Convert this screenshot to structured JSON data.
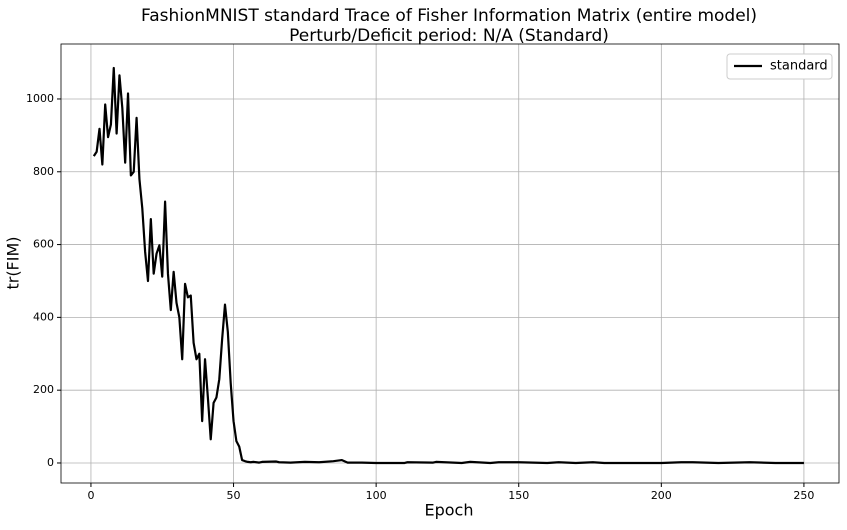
{
  "chart_data": {
    "type": "line",
    "title": "FashionMNIST standard Trace of Fisher Information Matrix (entire model)",
    "subtitle": "Perturb/Deficit period: N/A (Standard)",
    "x_label": "Epoch",
    "y_label": "tr(FIM)",
    "x": [
      1,
      2,
      3,
      4,
      5,
      6,
      7,
      8,
      9,
      10,
      11,
      12,
      13,
      14,
      15,
      16,
      17,
      18,
      19,
      20,
      21,
      22,
      23,
      24,
      25,
      26,
      27,
      28,
      29,
      30,
      31,
      32,
      33,
      34,
      35,
      36,
      37,
      38,
      39,
      40,
      41,
      42,
      43,
      44,
      45,
      46,
      47,
      48,
      49,
      50,
      51,
      52,
      53,
      54,
      55,
      56,
      57,
      58,
      59,
      60,
      65,
      66,
      70,
      75,
      80,
      85,
      88,
      90,
      95,
      100,
      110,
      111,
      120,
      121,
      130,
      133,
      140,
      143,
      150,
      160,
      164,
      170,
      176,
      180,
      190,
      200,
      207,
      211,
      220,
      231,
      240,
      250
    ],
    "series": [
      {
        "name": "standard",
        "color": "#000000",
        "values": [
          843,
          855,
          918,
          820,
          985,
          895,
          930,
          1085,
          905,
          1065,
          975,
          825,
          1015,
          790,
          800,
          948,
          780,
          700,
          580,
          500,
          670,
          520,
          575,
          598,
          512,
          718,
          520,
          420,
          525,
          440,
          400,
          285,
          492,
          455,
          460,
          330,
          285,
          300,
          115,
          285,
          180,
          65,
          165,
          180,
          230,
          340,
          435,
          360,
          220,
          115,
          60,
          45,
          8,
          5,
          3,
          2,
          3,
          2,
          1,
          3,
          4,
          2,
          1,
          3,
          2,
          5,
          8,
          1,
          1,
          0,
          0,
          2,
          1,
          3,
          0,
          3,
          0,
          2,
          2,
          0,
          2,
          0,
          2,
          0,
          0,
          0,
          2,
          2,
          0,
          2,
          0,
          0
        ]
      }
    ],
    "xlim": [
      -10.5,
      262.3
    ],
    "ylim": [
      -55,
      1151
    ],
    "xticks": [
      0,
      50,
      100,
      150,
      200,
      250
    ],
    "yticks": [
      0,
      200,
      400,
      600,
      800,
      1000
    ],
    "grid": true,
    "legend": "upper right"
  }
}
